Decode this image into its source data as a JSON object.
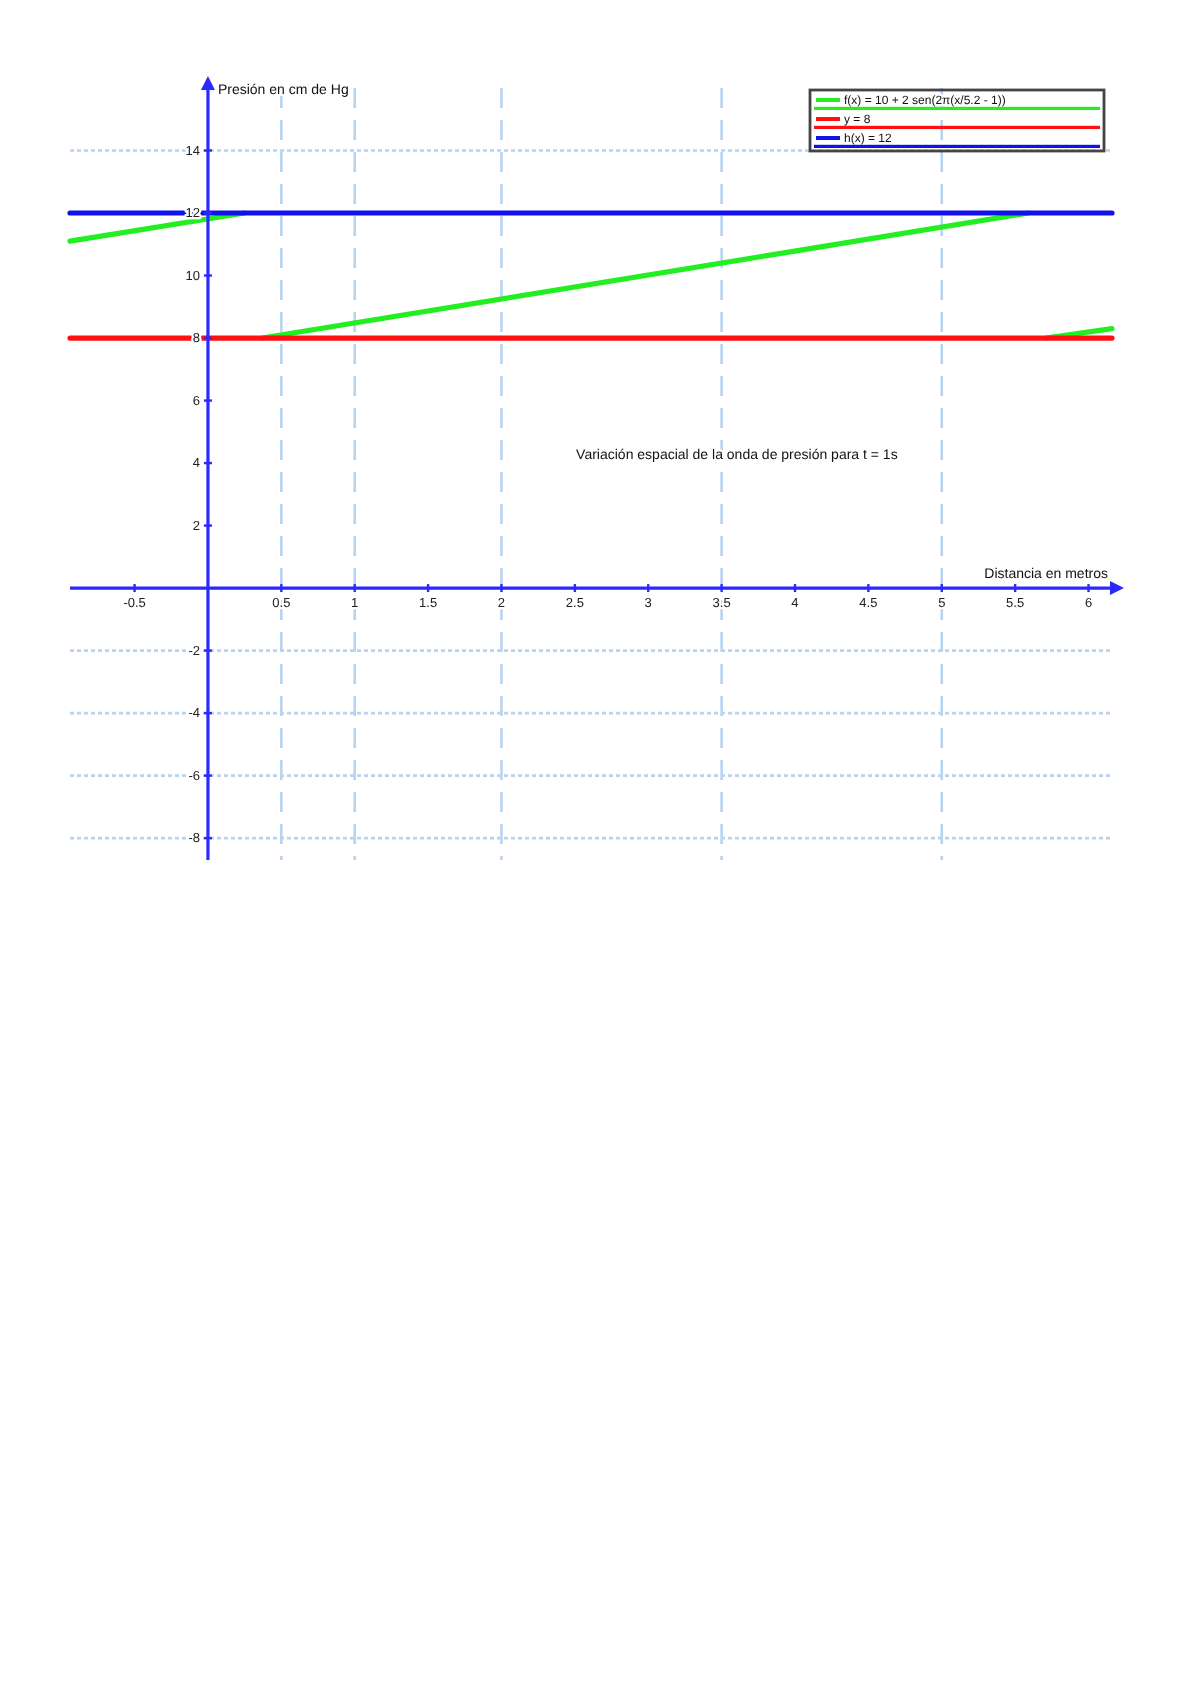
{
  "chart_data": {
    "type": "line",
    "xlabel": "Distancia en metros",
    "ylabel": "Presión en cm de Hg",
    "annotations": [
      "Variación espacial de la onda de presión para t = 1s"
    ],
    "xlim": [
      -0.94,
      6.16
    ],
    "ylim": [
      -8.7,
      16
    ],
    "xticks": [
      -0.5,
      0.5,
      1,
      1.5,
      2,
      2.5,
      3,
      3.5,
      4,
      4.5,
      5,
      5.5,
      6
    ],
    "yticks": [
      -8,
      -6,
      -4,
      -2,
      2,
      4,
      6,
      8,
      10,
      12,
      14
    ],
    "legend": "top right",
    "ref_lines": [
      {
        "axis": "x",
        "value": 0.5,
        "color": "#b8d4f0",
        "line_style": "dashed"
      },
      {
        "axis": "x",
        "value": 1,
        "color": "#b8d4f0",
        "line_style": "dashed"
      },
      {
        "axis": "x",
        "value": 2,
        "color": "#b8d4f0",
        "line_style": "dashed"
      },
      {
        "axis": "x",
        "value": 3.5,
        "color": "#b8d4f0",
        "line_style": "dashed"
      },
      {
        "axis": "x",
        "value": 5,
        "color": "#b8d4f0",
        "line_style": "dashed"
      },
      {
        "axis": "y",
        "value": 14,
        "color": "#b8d4f0",
        "line_style": "dotted"
      },
      {
        "axis": "y",
        "value": -2,
        "color": "#b8d4f0",
        "line_style": "dotted"
      },
      {
        "axis": "y",
        "value": -4,
        "color": "#b8d4f0",
        "line_style": "dotted"
      },
      {
        "axis": "y",
        "value": -6,
        "color": "#b8d4f0",
        "line_style": "dotted"
      },
      {
        "axis": "y",
        "value": -8,
        "color": "#b8d4f0",
        "line_style": "dotted"
      }
    ],
    "series": [
      {
        "name": "f(x) = 10 + 2 sen(2π(x/5.2 - 1))",
        "color": "#22ee22",
        "x": [
          -0.94,
          0.25,
          0.31,
          0.37,
          5.59,
          5.65,
          5.71,
          6.16
        ],
        "values": [
          11.1,
          12,
          null,
          8,
          12,
          null,
          8,
          8.3
        ]
      },
      {
        "name": "y = 8",
        "color": "#ff1111",
        "x": [
          -0.94,
          6.16
        ],
        "values": [
          8,
          8
        ]
      },
      {
        "name": "h(x) = 12",
        "color": "#1111ee",
        "x": [
          -0.94,
          6.16
        ],
        "values": [
          12,
          12
        ]
      }
    ]
  }
}
